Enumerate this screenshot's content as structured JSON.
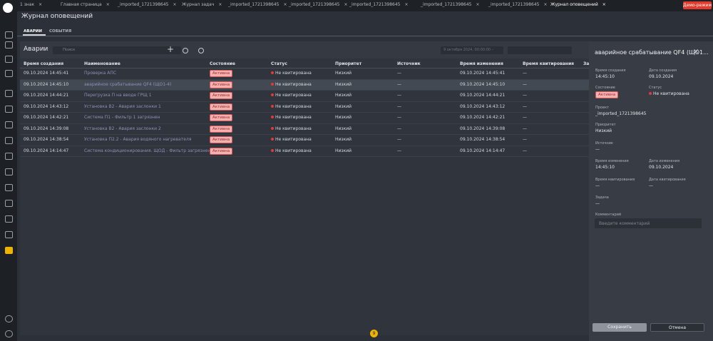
{
  "tabs": [
    "1 знак",
    "Главная страница",
    "_imported_1721398645",
    "Журнал задач",
    "_imported_1721398645",
    "_imported_1721398645",
    "_imported_1721398645",
    "_imported_1721398645",
    "_imported_1721398645",
    "Журнал оповещений"
  ],
  "close": "×",
  "demo": "Демо-режим",
  "page_title": "Журнал оповещений",
  "subtabs": [
    "АВАРИИ",
    "СОБЫТИЯ"
  ],
  "toolbar": {
    "title": "Аварии",
    "search": "Поиск",
    "date": "9 октября 2024, 00:00:00 –"
  },
  "table": {
    "columns": [
      "Время создания",
      "Наименование",
      "Состояние",
      "Статус",
      "Приоритет",
      "Источник",
      "Время изменения",
      "Время квитирования",
      "За"
    ],
    "rows": [
      [
        "09.10.2024 14:45:41",
        "Проверка АПС",
        "Активна",
        "Не квитирована",
        "Низкий",
        "—",
        "09.10.2024 14:45:41",
        "—"
      ],
      [
        "09.10.2024 14:45:10",
        "аварийное срабатывание QF4 (ЩО1-4)",
        "Активна",
        "Не квитирована",
        "Низкий",
        "—",
        "09.10.2024 14:45:10",
        "—"
      ],
      [
        "09.10.2024 14:44:21",
        "Перегрузка П на вводе ГРЩ 1",
        "Активна",
        "Не квитирована",
        "Низкий",
        "—",
        "09.10.2024 14:44:21",
        "—"
      ],
      [
        "09.10.2024 14:43:12",
        "Установка В2 - Авария заслонки 1",
        "Активна",
        "Не квитирована",
        "Низкий",
        "—",
        "09.10.2024 14:43:12",
        "—"
      ],
      [
        "09.10.2024 14:42:21",
        "Система П1 - Фильтр 1 загрязнен",
        "Активна",
        "Не квитирована",
        "Низкий",
        "—",
        "09.10.2024 14:42:21",
        "—"
      ],
      [
        "09.10.2024 14:39:08",
        "Установка В2 - Авария заслонки 2",
        "Активна",
        "Не квитирована",
        "Низкий",
        "—",
        "09.10.2024 14:39:08",
        "—"
      ],
      [
        "09.10.2024 14:38:54",
        "Установка П2.2 - Авария водяного нагревателя",
        "Активна",
        "Не квитирована",
        "Низкий",
        "—",
        "09.10.2024 14:38:54",
        "—"
      ],
      [
        "09.10.2024 14:14:47",
        "Система кондиционирования. ЩОД - Фильтр загрязнен",
        "Активна",
        "Не квитирована",
        "Низкий",
        "—",
        "09.10.2024 14:14:47",
        "—"
      ]
    ]
  },
  "panel": {
    "title": "аварийное срабатывание QF4 (ЩО1...",
    "fields": [
      {
        "label": "Время создания",
        "value": "14:45:10"
      },
      {
        "label": "Дата создания",
        "value": "09.10.2024"
      },
      {
        "label": "Состояние",
        "value": "Активна"
      },
      {
        "label": "Статус",
        "value": "Не квитирована"
      },
      {
        "label": "Проект",
        "value": "_imported_1721398645"
      },
      {
        "label": "Приоритет",
        "value": "Низкий"
      },
      {
        "label": "Источник",
        "value": "—"
      },
      {
        "label": "Время изменения",
        "value": "14:45:10"
      },
      {
        "label": "Дата изменения",
        "value": "09.10.2024"
      },
      {
        "label": "Время квитирования",
        "value": "—"
      },
      {
        "label": "Дата квитирования",
        "value": "—"
      },
      {
        "label": "Задача",
        "value": "—"
      }
    ],
    "comment_label": "Комментарий",
    "comment_placeholder": "Введите комментарий",
    "save": "Сохранить",
    "cancel": "Отмена"
  },
  "badge": "9"
}
